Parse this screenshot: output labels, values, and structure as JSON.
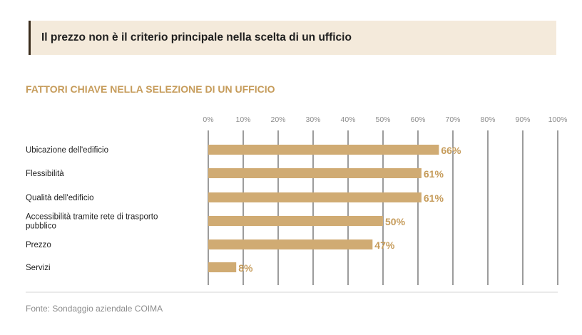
{
  "header": {
    "banner_title": "Il prezzo non è il criterio principale nella scelta di un ufficio"
  },
  "chart_data": {
    "type": "bar",
    "orientation": "horizontal",
    "title": "FATTORI CHIAVE NELLA SELEZIONE DI UN UFFICIO",
    "categories": [
      [
        "Ubicazione dell'edificio"
      ],
      [
        "Flessibilità"
      ],
      [
        "Qualità dell'edificio"
      ],
      [
        "Accessibilità tramite rete di trasporto",
        "pubblico"
      ],
      [
        "Prezzo"
      ],
      [
        "Servizi"
      ]
    ],
    "values": [
      66,
      61,
      61,
      50,
      47,
      8
    ],
    "value_labels": [
      "66%",
      "61%",
      "61%",
      "50%",
      "47%",
      "8%"
    ],
    "xlim": [
      0,
      100
    ],
    "x_ticks": [
      "0%",
      "10%",
      "20%",
      "30%",
      "40%",
      "50%",
      "60%",
      "70%",
      "80%",
      "90%",
      "100%"
    ],
    "tick_position": "top",
    "grid": true,
    "bar_color": "#d0ab73",
    "label_color": "#c69c5b"
  },
  "footer": {
    "source": "Fonte: Sondaggio aziendale COIMA"
  }
}
